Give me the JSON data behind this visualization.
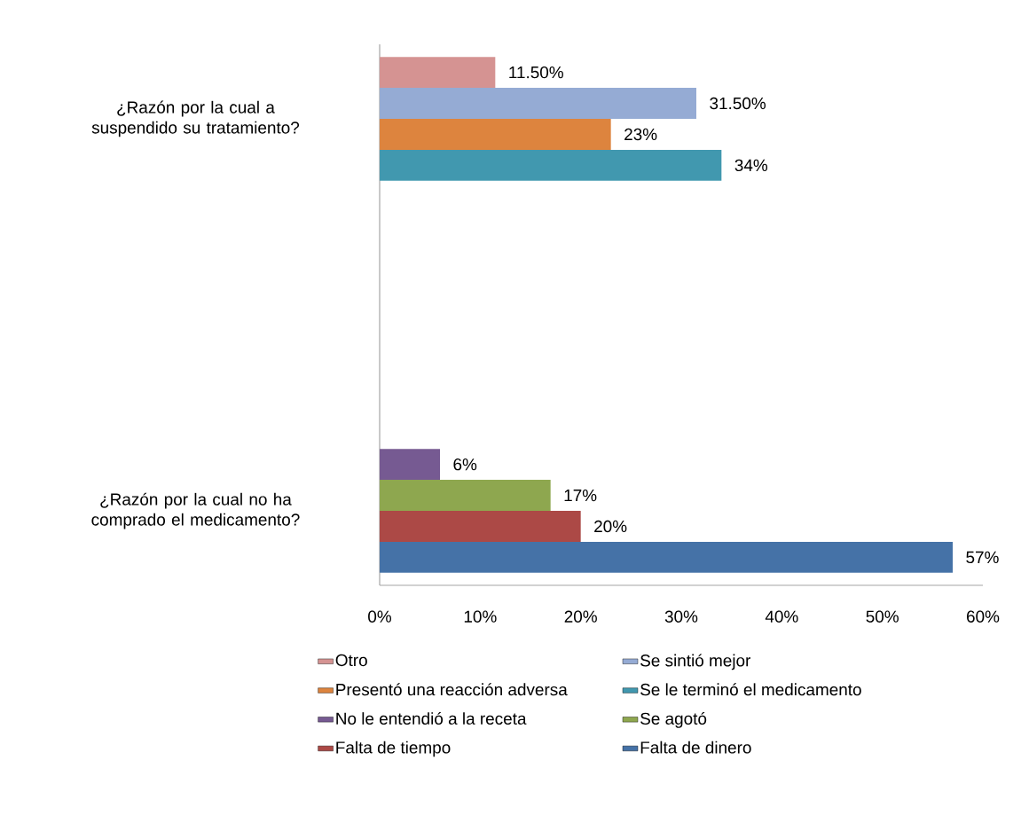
{
  "chart_data": {
    "type": "bar",
    "orientation": "horizontal",
    "categories": [
      "¿Razón por la cual a suspendido su tratamiento?",
      "¿Razón por la cual no ha comprado el medicamento?"
    ],
    "series": [
      {
        "name": "Otro",
        "color": "#d59392",
        "values": [
          11.5,
          null
        ],
        "value_labels": [
          "11.50%",
          null
        ]
      },
      {
        "name": "Se sintió mejor",
        "color": "#95abd4",
        "values": [
          31.5,
          null
        ],
        "value_labels": [
          "31.50%",
          null
        ]
      },
      {
        "name": "Presentó una reacción adversa",
        "color": "#dd843e",
        "values": [
          23,
          null
        ],
        "value_labels": [
          "23%",
          null
        ]
      },
      {
        "name": "Se le terminó el medicamento",
        "color": "#4198af",
        "values": [
          34,
          null
        ],
        "value_labels": [
          "34%",
          null
        ]
      },
      {
        "name": "No le entendió a la receta",
        "color": "#765a92",
        "values": [
          null,
          6
        ],
        "value_labels": [
          null,
          "6%"
        ]
      },
      {
        "name": "Se agotó",
        "color": "#8ea74f",
        "values": [
          null,
          17
        ],
        "value_labels": [
          null,
          "17%"
        ]
      },
      {
        "name": "Falta de tiempo",
        "color": "#ac4946",
        "values": [
          null,
          20
        ],
        "value_labels": [
          null,
          "20%"
        ]
      },
      {
        "name": "Falta de dinero",
        "color": "#4572a7",
        "values": [
          null,
          57
        ],
        "value_labels": [
          null,
          "57%"
        ]
      }
    ],
    "xlim": [
      0,
      60
    ],
    "xticks": [
      {
        "value": 0,
        "label": "0%"
      },
      {
        "value": 10,
        "label": "10%"
      },
      {
        "value": 20,
        "label": "20%"
      },
      {
        "value": 30,
        "label": "30%"
      },
      {
        "value": 40,
        "label": "40%"
      },
      {
        "value": 50,
        "label": "50%"
      },
      {
        "value": 60,
        "label": "60%"
      }
    ],
    "legend": "bottom"
  }
}
